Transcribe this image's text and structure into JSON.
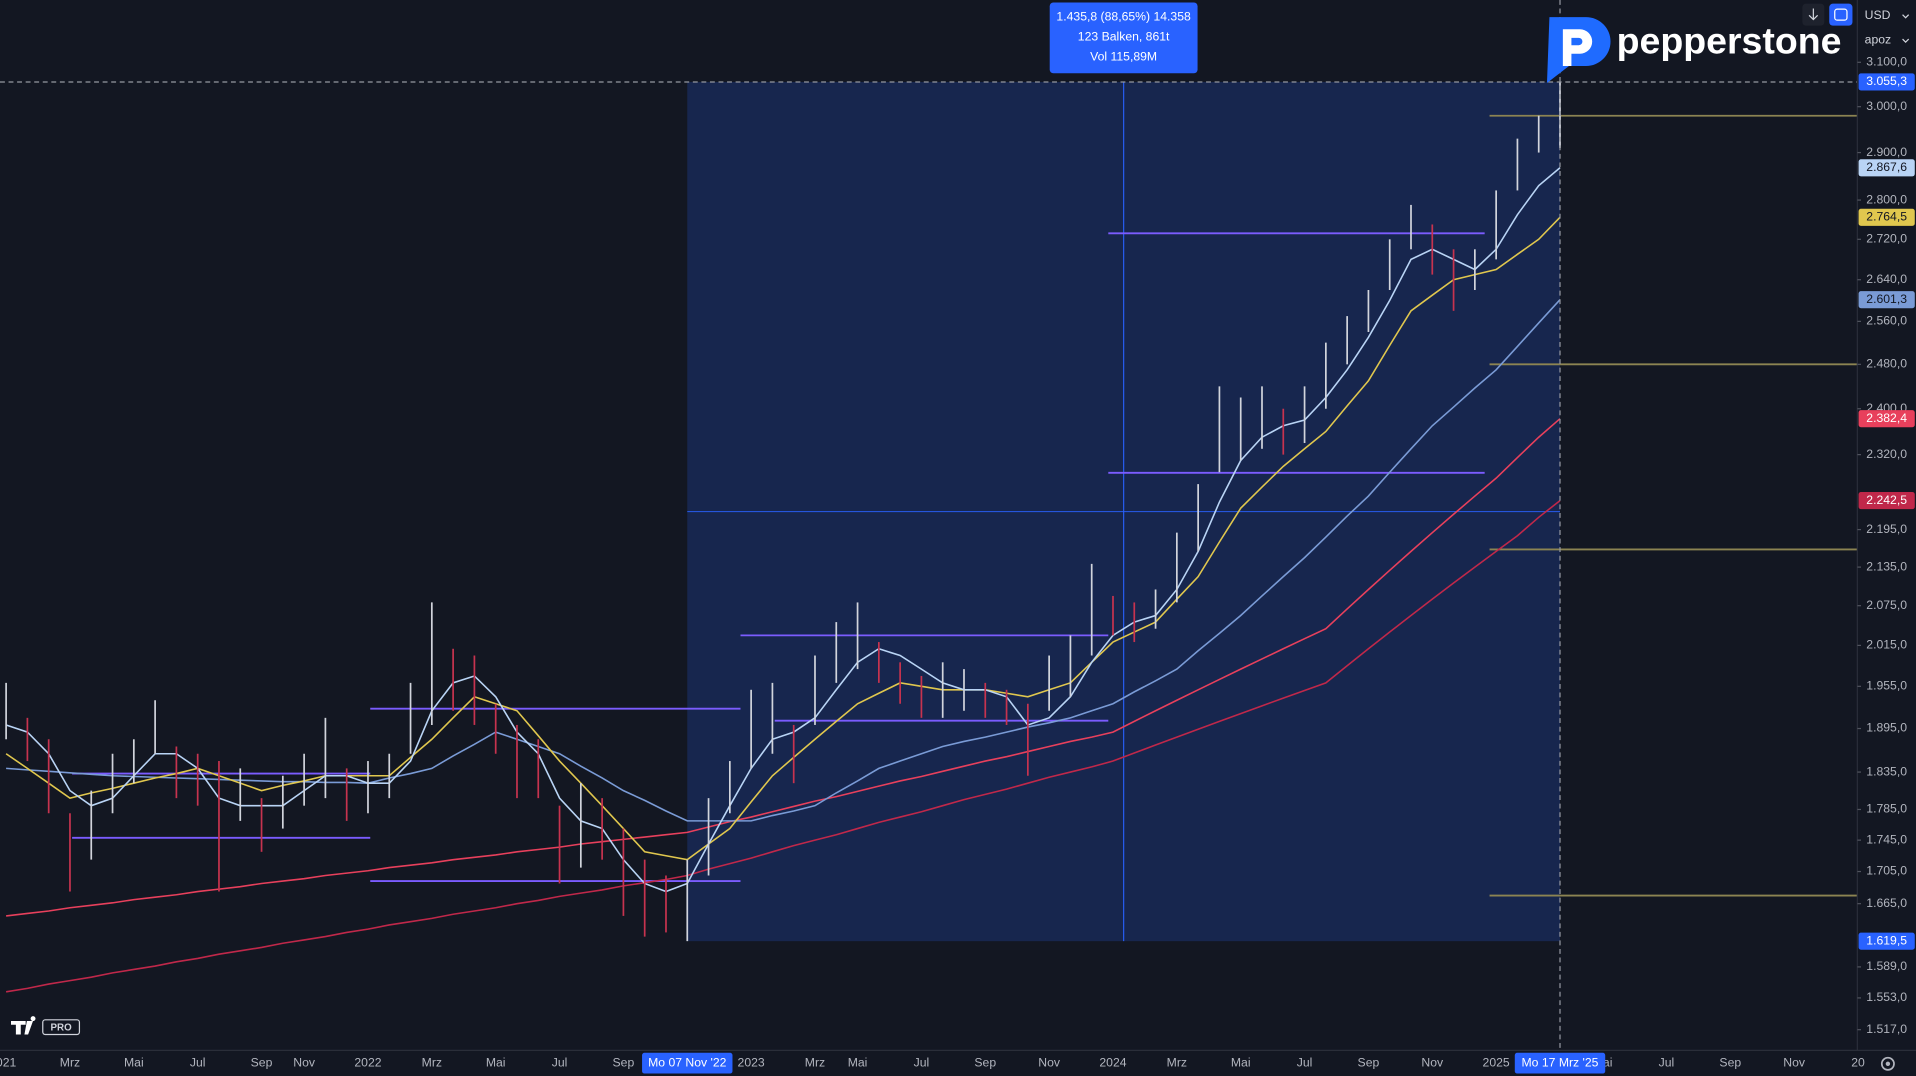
{
  "chart_data": {
    "type": "ohlc",
    "log_scale": true,
    "grid": false,
    "ylim": [
      1494,
      3246
    ],
    "yticks": [
      {
        "value": 3100,
        "label": "3.100,0"
      },
      {
        "value": 3000,
        "label": "3.000,0"
      },
      {
        "value": 2900,
        "label": "2.900,0"
      },
      {
        "value": 2800,
        "label": "2.800,0"
      },
      {
        "value": 2720,
        "label": "2.720,0"
      },
      {
        "value": 2640,
        "label": "2.640,0"
      },
      {
        "value": 2560,
        "label": "2.560,0"
      },
      {
        "value": 2480,
        "label": "2.480,0"
      },
      {
        "value": 2400,
        "label": "2.400,0"
      },
      {
        "value": 2320,
        "label": "2.320,0"
      },
      {
        "value": 2195,
        "label": "2.195,0"
      },
      {
        "value": 2135,
        "label": "2.135,0"
      },
      {
        "value": 2075,
        "label": "2.075,0"
      },
      {
        "value": 2015,
        "label": "2.015,0"
      },
      {
        "value": 1955,
        "label": "1.955,0"
      },
      {
        "value": 1895,
        "label": "1.895,0"
      },
      {
        "value": 1835,
        "label": "1.835,0"
      },
      {
        "value": 1785,
        "label": "1.785,0"
      },
      {
        "value": 1745,
        "label": "1.745,0"
      },
      {
        "value": 1705,
        "label": "1.705,0"
      },
      {
        "value": 1665,
        "label": "1.665,0"
      },
      {
        "value": 1589,
        "label": "1.589,0"
      },
      {
        "value": 1553,
        "label": "1.553,0"
      },
      {
        "value": 1517,
        "label": "1.517,0"
      }
    ],
    "categories": [
      "021",
      null,
      null,
      "Mrz",
      null,
      null,
      "Mai",
      null,
      null,
      "Jul",
      null,
      null,
      "Sep",
      null,
      "Nov",
      null,
      null,
      "2022",
      null,
      null,
      "Mrz",
      null,
      null,
      "Mai",
      null,
      null,
      "Jul",
      null,
      null,
      "Sep",
      null,
      null,
      "Mo 07 Nov '22",
      null,
      null,
      "2023",
      null,
      null,
      "Mrz",
      null,
      "Mai",
      null,
      null,
      "Jul",
      null,
      null,
      "Sep",
      null,
      null,
      "Nov",
      null,
      null,
      "2024",
      null,
      null,
      "Mrz",
      null,
      null,
      "Mai",
      null,
      null,
      "Jul",
      null,
      null,
      "Sep",
      null,
      null,
      "Nov",
      null,
      null,
      "2025",
      null,
      null,
      "Mo 17 Mrz '25",
      null,
      "Mai",
      null,
      null,
      "Jul",
      null,
      null,
      "Sep",
      null,
      null,
      "Nov",
      null,
      null,
      "20"
    ],
    "low": [
      1880,
      1850,
      1780,
      1680,
      1720,
      1780,
      1820,
      1860,
      1800,
      1790,
      1680,
      1770,
      1730,
      1760,
      1790,
      1800,
      1770,
      1780,
      1800,
      1860,
      1900,
      1920,
      1900,
      1860,
      1800,
      1800,
      1690,
      1710,
      1720,
      1650,
      1625,
      1630,
      1619.5,
      1700,
      1780,
      1840,
      1860,
      1820,
      1900,
      1960,
      1980,
      1960,
      1930,
      1910,
      1910,
      1920,
      1910,
      1900,
      1830,
      1920,
      1940,
      2000,
      2030,
      2020,
      2040,
      2080,
      2160,
      2290,
      2310,
      2330,
      2320,
      2340,
      2400,
      2480,
      2540,
      2620,
      2700,
      2650,
      2580,
      2620,
      2680,
      2820,
      2900,
      2910,
      null,
      null,
      null,
      null,
      null,
      null,
      null,
      null,
      null,
      null,
      null,
      null,
      null,
      null
    ],
    "high": [
      1960,
      1910,
      1880,
      1780,
      1810,
      1860,
      1880,
      1935,
      1870,
      1860,
      1850,
      1840,
      1800,
      1830,
      1860,
      1910,
      1840,
      1850,
      1860,
      1960,
      2080,
      2010,
      2000,
      1930,
      1900,
      1880,
      1790,
      1820,
      1800,
      1760,
      1720,
      1700,
      1720,
      1800,
      1850,
      1950,
      1960,
      1900,
      2000,
      2050,
      2080,
      2020,
      1990,
      1970,
      1990,
      1980,
      1960,
      1950,
      1930,
      2000,
      2030,
      2140,
      2090,
      2080,
      2100,
      2190,
      2270,
      2440,
      2420,
      2440,
      2400,
      2440,
      2520,
      2570,
      2620,
      2720,
      2790,
      2750,
      2700,
      2700,
      2820,
      2930,
      2980,
      3055.3,
      null,
      null,
      null,
      null,
      null,
      null,
      null,
      null,
      null,
      null,
      null,
      null,
      null,
      null
    ],
    "bar_colors": {
      "up": "#d1d4dc",
      "down": "#c7334f"
    },
    "series": [
      {
        "color": "#c0284a",
        "end_label": "2.242,5",
        "values": [
          1560,
          1564,
          1569,
          1573,
          1577,
          1582,
          1586,
          1590,
          1595,
          1599,
          1604,
          1608,
          1612,
          1617,
          1621,
          1625,
          1630,
          1634,
          1639,
          1643,
          1647,
          1652,
          1656,
          1660,
          1665,
          1669,
          1674,
          1678,
          1682,
          1687,
          1691,
          1695,
          1700,
          1708,
          1715,
          1722,
          1730,
          1738,
          1745,
          1752,
          1760,
          1768,
          1775,
          1782,
          1790,
          1798,
          1805,
          1812,
          1820,
          1828,
          1835,
          1842,
          1850,
          1861,
          1872,
          1883,
          1894,
          1905,
          1916,
          1927,
          1938,
          1949,
          1960,
          1985,
          2010,
          2035,
          2060,
          2085,
          2110,
          2135,
          2160,
          2185,
          2215,
          2242.5,
          null,
          null,
          null,
          null,
          null,
          null,
          null,
          null,
          null,
          null,
          null,
          null,
          null,
          null
        ]
      },
      {
        "color": "#e8405c",
        "end_label": "2.382,4",
        "values": [
          1650,
          1653,
          1656,
          1660,
          1663,
          1666,
          1670,
          1673,
          1676,
          1680,
          1683,
          1686,
          1690,
          1693,
          1696,
          1700,
          1703,
          1706,
          1710,
          1713,
          1716,
          1720,
          1723,
          1726,
          1730,
          1733,
          1736,
          1740,
          1743,
          1746,
          1749,
          1752,
          1755,
          1762,
          1769,
          1775,
          1782,
          1789,
          1796,
          1802,
          1809,
          1816,
          1823,
          1829,
          1836,
          1843,
          1850,
          1856,
          1863,
          1870,
          1877,
          1883,
          1890,
          1905,
          1920,
          1935,
          1950,
          1965,
          1980,
          1995,
          2010,
          2025,
          2040,
          2070,
          2100,
          2130,
          2160,
          2190,
          2220,
          2250,
          2280,
          2315,
          2350,
          2382.4,
          null,
          null,
          null,
          null,
          null,
          null,
          null,
          null,
          null,
          null,
          null,
          null,
          null,
          null
        ]
      },
      {
        "color": "#7a9bd6",
        "end_label": "2.601,3",
        "values": [
          1840,
          1838,
          1836,
          1834,
          1832,
          1830,
          1829,
          1828,
          1827,
          1826,
          1825,
          1824,
          1823,
          1822,
          1822,
          1821,
          1821,
          1820,
          1827,
          1833,
          1840,
          1857,
          1873,
          1890,
          1880,
          1870,
          1860,
          1843,
          1827,
          1810,
          1797,
          1783,
          1770,
          1770,
          1770,
          1770,
          1777,
          1783,
          1790,
          1807,
          1823,
          1840,
          1850,
          1860,
          1870,
          1877,
          1883,
          1890,
          1897,
          1903,
          1910,
          1920,
          1930,
          1947,
          1963,
          1980,
          2007,
          2033,
          2060,
          2090,
          2120,
          2150,
          2183,
          2217,
          2250,
          2290,
          2330,
          2370,
          2403,
          2437,
          2470,
          2513,
          2557,
          2601.3,
          null,
          null,
          null,
          null,
          null,
          null,
          null,
          null,
          null,
          null,
          null,
          null,
          null,
          null
        ]
      },
      {
        "color": "#e0c74e",
        "end_label": "2.764,5",
        "values": [
          1860,
          1840,
          1820,
          1800,
          1807,
          1813,
          1820,
          1827,
          1833,
          1840,
          1830,
          1820,
          1810,
          1817,
          1823,
          1830,
          1830,
          1830,
          1830,
          1855,
          1880,
          1910,
          1940,
          1930,
          1920,
          1885,
          1850,
          1820,
          1790,
          1760,
          1730,
          1725,
          1720,
          1740,
          1760,
          1795,
          1830,
          1855,
          1880,
          1905,
          1930,
          1945,
          1960,
          1955,
          1950,
          1950,
          1950,
          1945,
          1940,
          1950,
          1960,
          1990,
          2020,
          2035,
          2050,
          2085,
          2120,
          2175,
          2230,
          2265,
          2300,
          2330,
          2360,
          2405,
          2450,
          2515,
          2580,
          2610,
          2640,
          2650,
          2660,
          2690,
          2720,
          2764.5,
          null,
          null,
          null,
          null,
          null,
          null,
          null,
          null,
          null,
          null,
          null,
          null,
          null,
          null
        ]
      },
      {
        "color": "#b9d4f5",
        "end_label": "2.867,6",
        "values": [
          1900,
          1890,
          1860,
          1810,
          1790,
          1800,
          1830,
          1860,
          1860,
          1840,
          1800,
          1790,
          1790,
          1790,
          1810,
          1830,
          1830,
          1820,
          1820,
          1850,
          1920,
          1960,
          1970,
          1940,
          1890,
          1860,
          1800,
          1770,
          1760,
          1720,
          1690,
          1680,
          1690,
          1740,
          1790,
          1840,
          1880,
          1890,
          1910,
          1950,
          1990,
          2010,
          2000,
          1980,
          1960,
          1950,
          1950,
          1940,
          1900,
          1910,
          1940,
          1990,
          2030,
          2050,
          2060,
          2100,
          2160,
          2240,
          2310,
          2350,
          2370,
          2380,
          2420,
          2470,
          2530,
          2600,
          2680,
          2700,
          2680,
          2660,
          2700,
          2770,
          2830,
          2867.6,
          null,
          null,
          null,
          null,
          null,
          null,
          null,
          null,
          null,
          null,
          null,
          null,
          null,
          null
        ]
      }
    ],
    "levels": [
      {
        "value": 2732,
        "color": "#7b5cff"
      },
      {
        "value": 2289,
        "color": "#7b5cff"
      },
      {
        "value": 2030,
        "color": "#7b5cff"
      },
      {
        "value": 1906,
        "color": "#7b5cff"
      },
      {
        "value": 1923,
        "color": "#7b5cff"
      },
      {
        "value": 1833,
        "color": "#7b5cff"
      },
      {
        "value": 1748,
        "color": "#7b5cff"
      },
      {
        "value": 1693,
        "color": "#7b5cff"
      },
      {
        "value": 2980,
        "color": "#8c8452"
      },
      {
        "value": 2480,
        "color": "#8c8452"
      },
      {
        "value": 2163,
        "color": "#8c8452"
      },
      {
        "value": 1675,
        "color": "#8c8452"
      }
    ],
    "range_tool": {
      "color": "#2962ff",
      "high": 3055.3,
      "high_label": "3.055,3",
      "low": 1619.5,
      "low_label": "1.619,5",
      "lines": [
        "1.435,8 (88,65%) 14.358",
        "123 Balken, 861t",
        "Vol 115,89M"
      ]
    }
  },
  "brand": "pepperstone",
  "currency": "USD",
  "menu": "apoz",
  "badge": "PRO"
}
